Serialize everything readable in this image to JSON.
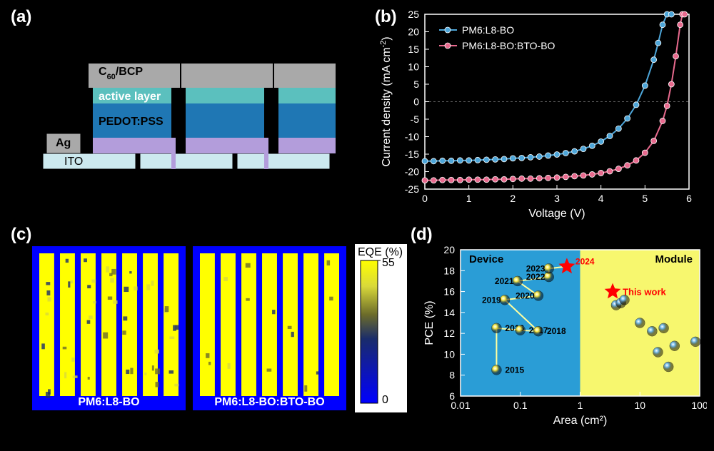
{
  "labels": {
    "a": "(a)",
    "b": "(b)",
    "c": "(c)",
    "d": "(d)"
  },
  "panel_a": {
    "layers": [
      {
        "name": "Ag",
        "color": "#a9a9a9",
        "text_color": "#000000"
      },
      {
        "name": "C60_BCP",
        "label_html": "C<sub>60</sub>/BCP",
        "color": "#5bc0be",
        "text_color": "#000000"
      },
      {
        "name": "active layer",
        "color": "#1f77b4",
        "text_color": "#ffffff"
      },
      {
        "name": "PEDOT:PSS",
        "color": "#b39ddb",
        "text_color": "#000000"
      },
      {
        "name": "ITO",
        "color": "#cce9ef",
        "text_color": "#000000"
      }
    ],
    "ag_pad_label": "Ag",
    "fontsize": 16
  },
  "panel_b": {
    "type": "line",
    "xlabel": "Voltage (V)",
    "ylabel_html": "Current density (mA cm<sup>-2</sup>)",
    "xlim": [
      0,
      6
    ],
    "xtick_step": 1,
    "ylim": [
      -25,
      25
    ],
    "ytick_step": 5,
    "axis_color": "#ffffff",
    "tick_fontsize": 14,
    "label_fontsize": 16,
    "legend_fontsize": 14,
    "line_width": 2,
    "marker_size": 4,
    "series": [
      {
        "name": "PM6:L8-BO",
        "color": "#4da6d9",
        "x": [
          0.0,
          0.2,
          0.4,
          0.6,
          0.8,
          1.0,
          1.2,
          1.4,
          1.6,
          1.8,
          2.0,
          2.2,
          2.4,
          2.6,
          2.8,
          3.0,
          3.2,
          3.4,
          3.6,
          3.8,
          4.0,
          4.2,
          4.4,
          4.6,
          4.8,
          5.0,
          5.2,
          5.3,
          5.4,
          5.5,
          5.6
        ],
        "y": [
          -17.0,
          -17.0,
          -16.9,
          -16.9,
          -16.8,
          -16.8,
          -16.7,
          -16.6,
          -16.5,
          -16.4,
          -16.2,
          -16.1,
          -15.9,
          -15.7,
          -15.4,
          -15.1,
          -14.7,
          -14.2,
          -13.5,
          -12.6,
          -11.4,
          -9.8,
          -7.7,
          -4.8,
          -0.9,
          4.6,
          12.0,
          16.8,
          22.0,
          25.0,
          25.0
        ]
      },
      {
        "name": "PM6:L8-BO:BTO-BO",
        "color": "#e86a8e",
        "x": [
          0.0,
          0.2,
          0.4,
          0.6,
          0.8,
          1.0,
          1.2,
          1.4,
          1.6,
          1.8,
          2.0,
          2.2,
          2.4,
          2.6,
          2.8,
          3.0,
          3.2,
          3.4,
          3.6,
          3.8,
          4.0,
          4.2,
          4.4,
          4.6,
          4.8,
          5.0,
          5.2,
          5.4,
          5.5,
          5.6,
          5.7,
          5.8,
          5.85,
          5.9
        ],
        "y": [
          -22.5,
          -22.5,
          -22.4,
          -22.4,
          -22.4,
          -22.3,
          -22.3,
          -22.3,
          -22.2,
          -22.2,
          -22.1,
          -22.0,
          -22.0,
          -21.9,
          -21.8,
          -21.7,
          -21.5,
          -21.3,
          -21.1,
          -20.8,
          -20.4,
          -19.9,
          -19.2,
          -18.2,
          -16.8,
          -14.6,
          -11.2,
          -5.5,
          -1.2,
          5.0,
          13.0,
          22.0,
          25.0,
          25.0
        ]
      }
    ]
  },
  "panel_c": {
    "type": "heatmap_pair",
    "background": "#0000ff",
    "panels": [
      {
        "label": "PM6:L8-BO",
        "noise": 0.18
      },
      {
        "label": "PM6:L8-BO:BTO-BO",
        "noise": 0.04
      }
    ],
    "colorbar": {
      "title": "EQE (%)",
      "min": 0,
      "max": 55,
      "stops": [
        {
          "v": 0.0,
          "c": "#0000ff"
        },
        {
          "v": 0.45,
          "c": "#1a2c6b"
        },
        {
          "v": 0.62,
          "c": "#6b6b2a"
        },
        {
          "v": 0.82,
          "c": "#d9d93a"
        },
        {
          "v": 1.0,
          "c": "#ffff00"
        }
      ],
      "text_color": "#000000",
      "fontsize": 16
    },
    "label_color": "#ffffff",
    "label_fontsize": 16,
    "bars_per_panel": 7
  },
  "panel_d": {
    "type": "scatter",
    "xlabel": "Area (cm²)",
    "ylabel": "PCE (%)",
    "xlim": [
      0.01,
      100
    ],
    "xscale": "log",
    "xticks": [
      0.01,
      0.1,
      1,
      10,
      100
    ],
    "ylim": [
      6,
      20
    ],
    "ytick_step": 2,
    "axis_color": "#ffffff",
    "label_fontsize": 16,
    "tick_fontsize": 14,
    "region_device": {
      "color": "#2a9dd6",
      "label": "Device",
      "label_color": "#000000",
      "x_max": 1
    },
    "region_module": {
      "color": "#f7f76e",
      "label": "Module",
      "label_color": "#000000",
      "x_min": 1
    },
    "line_color": "#ffffa0",
    "line_width": 2,
    "marker_size": 7,
    "star_color": "#ff0000",
    "star_size": 12,
    "points": [
      {
        "x": 0.04,
        "y": 8.5,
        "year": "2015"
      },
      {
        "x": 0.04,
        "y": 12.5,
        "year": "2016"
      },
      {
        "x": 0.1,
        "y": 12.3,
        "year": "2017"
      },
      {
        "x": 0.2,
        "y": 12.2,
        "year": "2018"
      },
      {
        "x": 0.055,
        "y": 15.2,
        "year": "2019"
      },
      {
        "x": 0.2,
        "y": 15.6,
        "year": "2020"
      },
      {
        "x": 0.09,
        "y": 17.0,
        "year": "2021"
      },
      {
        "x": 0.3,
        "y": 17.4,
        "year": "2022"
      },
      {
        "x": 0.3,
        "y": 18.2,
        "year": "2023"
      },
      {
        "x": 0.6,
        "y": 18.4,
        "year": "2024",
        "star": true,
        "label_color": "#ff0000"
      }
    ],
    "module_points": [
      {
        "x": 3.5,
        "y": 16.0,
        "star": true,
        "label": "This work",
        "label_color": "#ff0000"
      },
      {
        "x": 4.0,
        "y": 14.7
      },
      {
        "x": 4.8,
        "y": 14.9
      },
      {
        "x": 5.5,
        "y": 15.2
      },
      {
        "x": 10,
        "y": 13.0
      },
      {
        "x": 16,
        "y": 12.2
      },
      {
        "x": 25,
        "y": 12.5
      },
      {
        "x": 20,
        "y": 10.2
      },
      {
        "x": 38,
        "y": 10.8
      },
      {
        "x": 30,
        "y": 8.8
      },
      {
        "x": 85,
        "y": 11.2
      }
    ]
  }
}
